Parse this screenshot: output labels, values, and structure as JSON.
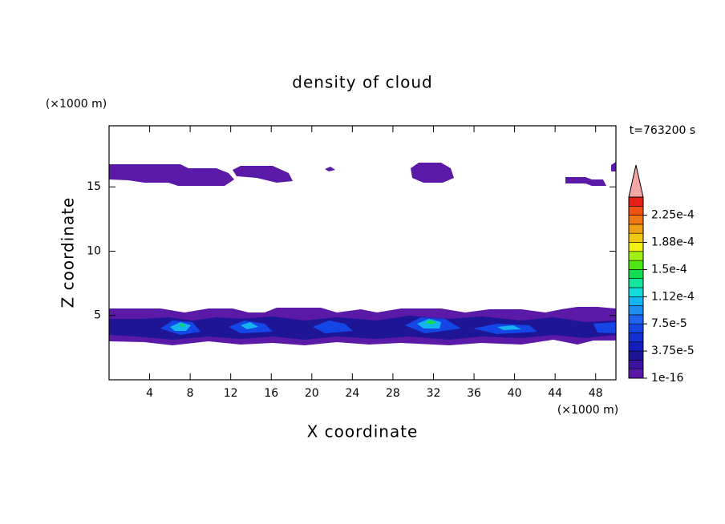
{
  "chart_data": {
    "type": "contour",
    "title": "density of cloud",
    "x_label": "X coordinate",
    "y_label": "Z coordinate",
    "x_unit": "(×1000 m)",
    "y_unit": "(×1000 m)",
    "annotation": "t=763200 s",
    "xlim": [
      0,
      50
    ],
    "xticks": [
      4,
      8,
      12,
      16,
      20,
      24,
      28,
      32,
      36,
      40,
      44,
      48
    ],
    "ylim": [
      0,
      19.75
    ],
    "yticks": [
      5,
      10,
      15
    ],
    "colorbar": {
      "lim": [
        0,
        0.00025
      ],
      "extend_color": "#f4a6a6",
      "colors": [
        "#5b19a8",
        "#3c12a0",
        "#1e1496",
        "#141ebe",
        "#1430d2",
        "#1446e6",
        "#1e64f0",
        "#1e8cf0",
        "#14b4f0",
        "#14dcdc",
        "#14e6a0",
        "#14dc50",
        "#50e614",
        "#a0f014",
        "#f0f014",
        "#f0c814",
        "#f0a014",
        "#f07814",
        "#f05014",
        "#e61e14"
      ],
      "ticks": [
        {
          "value": 1e-16,
          "label": "1e-16"
        },
        {
          "value": 3.75e-05,
          "label": "3.75e-5"
        },
        {
          "value": 7.5e-05,
          "label": "7.5e-5"
        },
        {
          "value": 0.0001125,
          "label": "1.12e-4"
        },
        {
          "value": 0.00015,
          "label": "1.5e-4"
        },
        {
          "value": 0.0001875,
          "label": "1.88e-4"
        },
        {
          "value": 0.000225,
          "label": "2.25e-4"
        }
      ]
    }
  }
}
